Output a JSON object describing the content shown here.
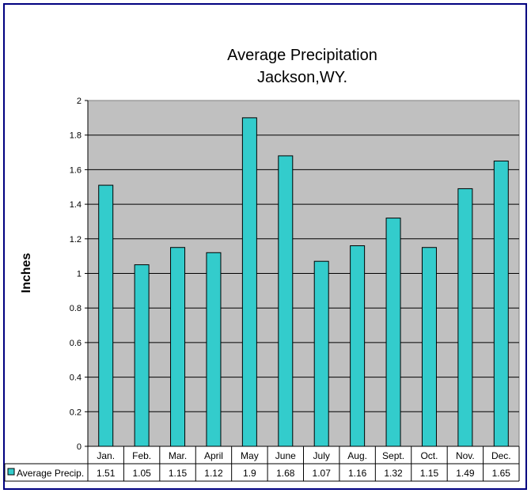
{
  "chart_data": {
    "type": "bar",
    "title": [
      "Average Precipitation",
      "Jackson,WY."
    ],
    "ylabel": "Inches",
    "xlabel": "",
    "ylim": [
      0,
      2
    ],
    "yticks": [
      "0",
      "0.2",
      "0.4",
      "0.6",
      "0.8",
      "1",
      "1.2",
      "1.4",
      "1.6",
      "1.8",
      "2"
    ],
    "grid": true,
    "categories": [
      "Jan.",
      "Feb.",
      "Mar.",
      "April",
      "May",
      "June",
      "July",
      "Aug.",
      "Sept.",
      "Oct.",
      "Nov.",
      "Dec."
    ],
    "series": [
      {
        "name": "Average Precip.",
        "values": [
          1.51,
          1.05,
          1.15,
          1.12,
          1.9,
          1.68,
          1.07,
          1.16,
          1.32,
          1.15,
          1.49,
          1.65
        ],
        "labels": [
          "1.51",
          "1.05",
          "1.15",
          "1.12",
          "1.9",
          "1.68",
          "1.07",
          "1.16",
          "1.32",
          "1.15",
          "1.49",
          "1.65"
        ]
      }
    ],
    "legend": "data-table",
    "colors": {
      "bar": "#33CCCC",
      "plot_bg": "#C0C0C0",
      "frame": "#000080"
    }
  }
}
